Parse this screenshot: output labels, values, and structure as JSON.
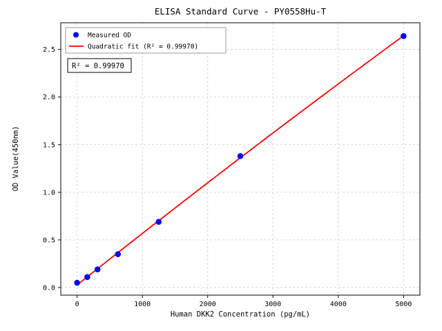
{
  "figure": {
    "title": "ELISA Standard Curve - PY0558Hu-T",
    "xlabel": "Human DKK2 Concentration (pg/mL)",
    "ylabel": "OD Value(450nm)",
    "annotation": "R² = 0.99970",
    "background": "#ffffff"
  },
  "legend": {
    "position": "upper left",
    "items": [
      {
        "label": "Measured OD",
        "type": "marker",
        "color": "#0000ff"
      },
      {
        "label": "Quadratic fit (R² = 0.99970)",
        "type": "line",
        "color": "#ff0000"
      }
    ]
  },
  "chart_data": {
    "type": "scatter",
    "title": "ELISA Standard Curve - PY0558Hu-T",
    "xlabel": "Human DKK2 Concentration (pg/mL)",
    "ylabel": "OD Value(450nm)",
    "series": [
      {
        "name": "Measured OD",
        "type": "scatter",
        "color": "#0000ff",
        "x": [
          0,
          156.25,
          312.5,
          625,
          1250,
          2500,
          5000
        ],
        "y": [
          0.05,
          0.11,
          0.19,
          0.35,
          0.69,
          1.38,
          2.64
        ]
      },
      {
        "name": "Quadratic fit (R² = 0.99970)",
        "type": "line",
        "color": "#ff0000",
        "fit": {
          "kind": "quadratic",
          "r_squared": 0.9997
        },
        "x_domain": [
          0,
          5000
        ]
      }
    ],
    "x_ticks": [
      0,
      1000,
      2000,
      3000,
      4000,
      5000
    ],
    "y_ticks": [
      0.0,
      0.5,
      1.0,
      1.5,
      2.0,
      2.5
    ],
    "xlim": [
      -250,
      5250
    ],
    "ylim": [
      -0.08,
      2.78
    ],
    "grid": true,
    "legend_position": "upper left"
  }
}
